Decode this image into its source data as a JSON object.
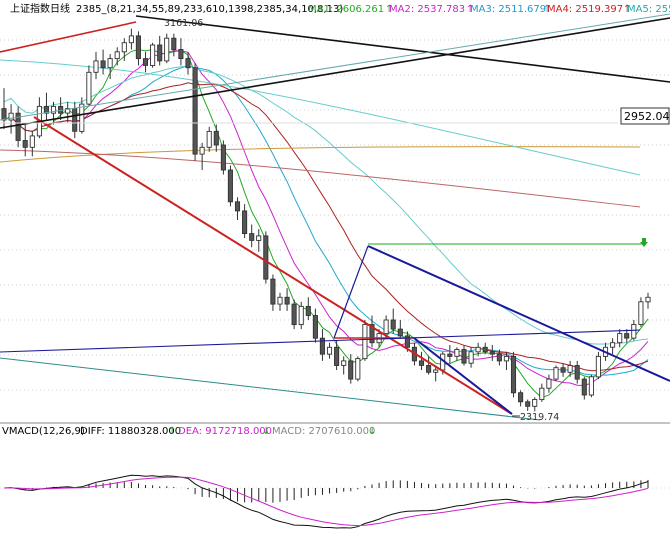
{
  "header": {
    "title": "上证指数日线",
    "params": "2385_(8,21,34,55,89,233,610,1398,2385,34,10,8,13)",
    "ma_readouts": [
      {
        "label": "MA1: 2606.261",
        "arrow": "↑",
        "color": "#22aa22"
      },
      {
        "label": "MA2: 2537.783",
        "arrow": "↑",
        "color": "#cc22cc"
      },
      {
        "label": "MA3: 2511.679",
        "arrow": "↑",
        "color": "#2299cc"
      },
      {
        "label": "MA4: 2519.397",
        "arrow": "↑",
        "color": "#cc2222"
      },
      {
        "label": "MA5: 255",
        "arrow": "",
        "color": "#22aaaa"
      }
    ]
  },
  "annotations": {
    "high_label": "3161.06",
    "low_label": "2319.74",
    "price_box": "2952.04"
  },
  "macd_panel": {
    "title": "VMACD(12,26,9)",
    "diff": {
      "label": "DIFF: 11880328.000",
      "arrow": "↑"
    },
    "dea": {
      "label": "DEA: 9172718.000",
      "arrow": "↓"
    },
    "macd": {
      "label": "MACD: 2707610.000",
      "arrow": "↓"
    }
  },
  "colors": {
    "up": "#333333",
    "down": "#555555",
    "ma1": "#22aa22",
    "ma2": "#cc22cc",
    "ma3": "#22aacc",
    "ma4": "#aa2222",
    "ma5": "#66cccc",
    "ma6": "#cc9933",
    "trend_red": "#cc2222",
    "trend_blue": "#1a1a99",
    "trend_black": "#111111",
    "grid": "#cfcfcf",
    "label_bg": "#ffffff"
  },
  "chart_data": {
    "type": "candlestick",
    "title": "上证指数日线",
    "candles": [
      {
        "o": 2985,
        "h": 3030,
        "l": 2940,
        "c": 2960
      },
      {
        "o": 2960,
        "h": 2995,
        "l": 2930,
        "c": 2975
      },
      {
        "o": 2975,
        "h": 2990,
        "l": 2900,
        "c": 2915
      },
      {
        "o": 2915,
        "h": 2950,
        "l": 2880,
        "c": 2900
      },
      {
        "o": 2900,
        "h": 2935,
        "l": 2880,
        "c": 2925
      },
      {
        "o": 2925,
        "h": 3010,
        "l": 2920,
        "c": 2990
      },
      {
        "o": 2990,
        "h": 3020,
        "l": 2960,
        "c": 2975
      },
      {
        "o": 2975,
        "h": 3000,
        "l": 2950,
        "c": 2990
      },
      {
        "o": 2990,
        "h": 3010,
        "l": 2960,
        "c": 2975
      },
      {
        "o": 2975,
        "h": 3000,
        "l": 2955,
        "c": 2985
      },
      {
        "o": 2985,
        "h": 3000,
        "l": 2920,
        "c": 2935
      },
      {
        "o": 2935,
        "h": 3010,
        "l": 2930,
        "c": 2995
      },
      {
        "o": 2995,
        "h": 3080,
        "l": 2990,
        "c": 3065
      },
      {
        "o": 3065,
        "h": 3110,
        "l": 3050,
        "c": 3090
      },
      {
        "o": 3090,
        "h": 3115,
        "l": 3060,
        "c": 3075
      },
      {
        "o": 3075,
        "h": 3105,
        "l": 3050,
        "c": 3095
      },
      {
        "o": 3095,
        "h": 3120,
        "l": 3080,
        "c": 3110
      },
      {
        "o": 3110,
        "h": 3140,
        "l": 3090,
        "c": 3130
      },
      {
        "o": 3130,
        "h": 3161,
        "l": 3115,
        "c": 3145
      },
      {
        "o": 3145,
        "h": 3155,
        "l": 3080,
        "c": 3095
      },
      {
        "o": 3095,
        "h": 3110,
        "l": 3065,
        "c": 3080
      },
      {
        "o": 3080,
        "h": 3130,
        "l": 3075,
        "c": 3125
      },
      {
        "o": 3125,
        "h": 3145,
        "l": 3080,
        "c": 3090
      },
      {
        "o": 3090,
        "h": 3150,
        "l": 3085,
        "c": 3140
      },
      {
        "o": 3140,
        "h": 3150,
        "l": 3100,
        "c": 3115
      },
      {
        "o": 3115,
        "h": 3140,
        "l": 3080,
        "c": 3095
      },
      {
        "o": 3095,
        "h": 3110,
        "l": 3060,
        "c": 3075
      },
      {
        "o": 3075,
        "h": 3085,
        "l": 2870,
        "c": 2885
      },
      {
        "o": 2885,
        "h": 2910,
        "l": 2850,
        "c": 2900
      },
      {
        "o": 2900,
        "h": 2945,
        "l": 2890,
        "c": 2935
      },
      {
        "o": 2935,
        "h": 2950,
        "l": 2890,
        "c": 2905
      },
      {
        "o": 2905,
        "h": 2915,
        "l": 2840,
        "c": 2850
      },
      {
        "o": 2850,
        "h": 2860,
        "l": 2770,
        "c": 2780
      },
      {
        "o": 2780,
        "h": 2790,
        "l": 2740,
        "c": 2760
      },
      {
        "o": 2760,
        "h": 2775,
        "l": 2700,
        "c": 2710
      },
      {
        "o": 2710,
        "h": 2730,
        "l": 2680,
        "c": 2695
      },
      {
        "o": 2695,
        "h": 2720,
        "l": 2670,
        "c": 2705
      },
      {
        "o": 2705,
        "h": 2715,
        "l": 2600,
        "c": 2610
      },
      {
        "o": 2610,
        "h": 2620,
        "l": 2540,
        "c": 2555
      },
      {
        "o": 2555,
        "h": 2580,
        "l": 2540,
        "c": 2570
      },
      {
        "o": 2570,
        "h": 2590,
        "l": 2540,
        "c": 2555
      },
      {
        "o": 2555,
        "h": 2565,
        "l": 2500,
        "c": 2510
      },
      {
        "o": 2510,
        "h": 2560,
        "l": 2500,
        "c": 2550
      },
      {
        "o": 2550,
        "h": 2570,
        "l": 2520,
        "c": 2530
      },
      {
        "o": 2530,
        "h": 2545,
        "l": 2470,
        "c": 2480
      },
      {
        "o": 2480,
        "h": 2500,
        "l": 2430,
        "c": 2445
      },
      {
        "o": 2445,
        "h": 2470,
        "l": 2435,
        "c": 2460
      },
      {
        "o": 2460,
        "h": 2475,
        "l": 2410,
        "c": 2420
      },
      {
        "o": 2420,
        "h": 2440,
        "l": 2400,
        "c": 2430
      },
      {
        "o": 2430,
        "h": 2445,
        "l": 2380,
        "c": 2390
      },
      {
        "o": 2390,
        "h": 2440,
        "l": 2385,
        "c": 2435
      },
      {
        "o": 2435,
        "h": 2520,
        "l": 2430,
        "c": 2510
      },
      {
        "o": 2510,
        "h": 2530,
        "l": 2460,
        "c": 2470
      },
      {
        "o": 2470,
        "h": 2500,
        "l": 2460,
        "c": 2490
      },
      {
        "o": 2490,
        "h": 2530,
        "l": 2480,
        "c": 2520
      },
      {
        "o": 2520,
        "h": 2545,
        "l": 2490,
        "c": 2500
      },
      {
        "o": 2500,
        "h": 2520,
        "l": 2480,
        "c": 2485
      },
      {
        "o": 2485,
        "h": 2495,
        "l": 2450,
        "c": 2460
      },
      {
        "o": 2460,
        "h": 2470,
        "l": 2420,
        "c": 2430
      },
      {
        "o": 2430,
        "h": 2450,
        "l": 2410,
        "c": 2420
      },
      {
        "o": 2420,
        "h": 2440,
        "l": 2400,
        "c": 2405
      },
      {
        "o": 2405,
        "h": 2420,
        "l": 2385,
        "c": 2410
      },
      {
        "o": 2410,
        "h": 2450,
        "l": 2400,
        "c": 2445
      },
      {
        "o": 2445,
        "h": 2465,
        "l": 2425,
        "c": 2440
      },
      {
        "o": 2440,
        "h": 2460,
        "l": 2430,
        "c": 2455
      },
      {
        "o": 2455,
        "h": 2465,
        "l": 2420,
        "c": 2425
      },
      {
        "o": 2425,
        "h": 2460,
        "l": 2415,
        "c": 2450
      },
      {
        "o": 2450,
        "h": 2470,
        "l": 2440,
        "c": 2460
      },
      {
        "o": 2460,
        "h": 2470,
        "l": 2445,
        "c": 2450
      },
      {
        "o": 2450,
        "h": 2465,
        "l": 2430,
        "c": 2445
      },
      {
        "o": 2445,
        "h": 2455,
        "l": 2420,
        "c": 2430
      },
      {
        "o": 2430,
        "h": 2450,
        "l": 2410,
        "c": 2440
      },
      {
        "o": 2440,
        "h": 2450,
        "l": 2350,
        "c": 2360
      },
      {
        "o": 2360,
        "h": 2365,
        "l": 2330,
        "c": 2340
      },
      {
        "o": 2340,
        "h": 2345,
        "l": 2320,
        "c": 2330
      },
      {
        "o": 2330,
        "h": 2350,
        "l": 2319,
        "c": 2345
      },
      {
        "o": 2345,
        "h": 2380,
        "l": 2340,
        "c": 2370
      },
      {
        "o": 2370,
        "h": 2400,
        "l": 2360,
        "c": 2390
      },
      {
        "o": 2390,
        "h": 2420,
        "l": 2385,
        "c": 2415
      },
      {
        "o": 2415,
        "h": 2425,
        "l": 2395,
        "c": 2405
      },
      {
        "o": 2405,
        "h": 2430,
        "l": 2395,
        "c": 2420
      },
      {
        "o": 2420,
        "h": 2430,
        "l": 2380,
        "c": 2390
      },
      {
        "o": 2390,
        "h": 2395,
        "l": 2345,
        "c": 2355
      },
      {
        "o": 2355,
        "h": 2400,
        "l": 2350,
        "c": 2395
      },
      {
        "o": 2395,
        "h": 2450,
        "l": 2390,
        "c": 2440
      },
      {
        "o": 2440,
        "h": 2470,
        "l": 2430,
        "c": 2460
      },
      {
        "o": 2460,
        "h": 2480,
        "l": 2445,
        "c": 2470
      },
      {
        "o": 2470,
        "h": 2500,
        "l": 2460,
        "c": 2490
      },
      {
        "o": 2490,
        "h": 2500,
        "l": 2470,
        "c": 2480
      },
      {
        "o": 2480,
        "h": 2520,
        "l": 2475,
        "c": 2510
      },
      {
        "o": 2510,
        "h": 2570,
        "l": 2505,
        "c": 2560
      },
      {
        "o": 2560,
        "h": 2580,
        "l": 2545,
        "c": 2570
      }
    ],
    "y_range": [
      2300,
      3180
    ],
    "guide_levels": {
      "resistance": 2586,
      "support_floor": 2319.74,
      "upper_box": 2952.04
    }
  }
}
